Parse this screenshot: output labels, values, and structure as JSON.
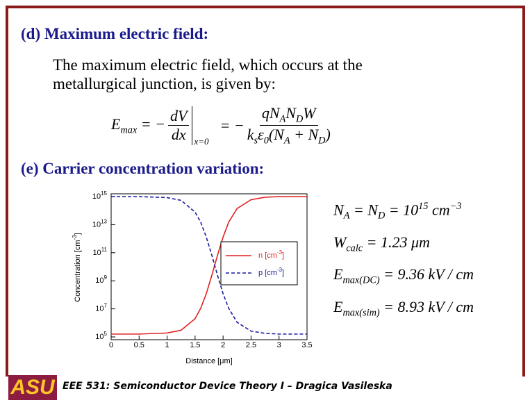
{
  "section_d": {
    "heading": "(d) Maximum electric field:",
    "body": "The maximum electric field, which occurs at the metallurgical junction, is given by:",
    "equation": {
      "lhs": "E_{max} = −",
      "frac1_num": "dV",
      "frac1_den": "dx",
      "eval": "x=0",
      "mid": "= −",
      "frac2_num": "qN_{A}N_{D}W",
      "frac2_den": "k_{s}ε_{0}(N_{A} + N_{D})"
    }
  },
  "section_e": {
    "heading": "(e) Carrier concentration variation:",
    "results": [
      "N_{A} = N_{D} = 10^{15} cm^{−3}",
      "W_{calc} = 1.23 μm",
      "E_{max(DC)} = 9.36 kV / cm",
      "E_{max(sim)} = 8.93 kV / cm"
    ]
  },
  "chart_data": {
    "type": "line",
    "x_label": "Distance [μm]",
    "y_label": "Concentration [cm^{-3}]",
    "log_y": true,
    "x": [
      0,
      0.5,
      1,
      1.25,
      1.5,
      1.6,
      1.7,
      1.8,
      1.9,
      2,
      2.1,
      2.25,
      2.5,
      2.75,
      3,
      3.5
    ],
    "series": [
      {
        "name": "n [cm^{-3}]",
        "color": "#e02020",
        "dash": false,
        "values": [
          160000,
          160000,
          190000,
          300000,
          2000000,
          11000000,
          120000000,
          2500000000,
          65000000000,
          1300000000000,
          15000000000000,
          140000000000000,
          600000000000000,
          900000000000000,
          1000000000000000,
          1000000000000000
        ]
      },
      {
        "name": "p [cm^{-3}]",
        "color": "#1a1aa0",
        "dash": true,
        "values": [
          1000000000000000,
          1000000000000000,
          850000000000000,
          540000000000000,
          78000000000000,
          15000000000000,
          1300000000000,
          65000000000,
          2500000000,
          120000000,
          11000000,
          1100000,
          260000,
          180000,
          160000,
          160000
        ]
      }
    ],
    "xlim": [
      0,
      3.5
    ],
    "xticks": [
      0,
      0.5,
      1,
      1.5,
      2,
      2.5,
      3,
      3.5
    ],
    "ylim": [
      100000,
      1000000000000000
    ],
    "yticks": [
      {
        "value": 100000,
        "label": "10^{5}"
      },
      {
        "value": 10000000,
        "label": "10^{7}"
      },
      {
        "value": 1000000000,
        "label": "10^{9}"
      },
      {
        "value": 100000000000,
        "label": "10^{11}"
      },
      {
        "value": 10000000000000,
        "label": "10^{13}"
      },
      {
        "value": 1000000000000000,
        "label": "10^{15}"
      }
    ]
  },
  "footer": {
    "logo": "ASU",
    "text": "EEE 531: Semiconductor Device Theory I – Dragica Vasileska"
  }
}
